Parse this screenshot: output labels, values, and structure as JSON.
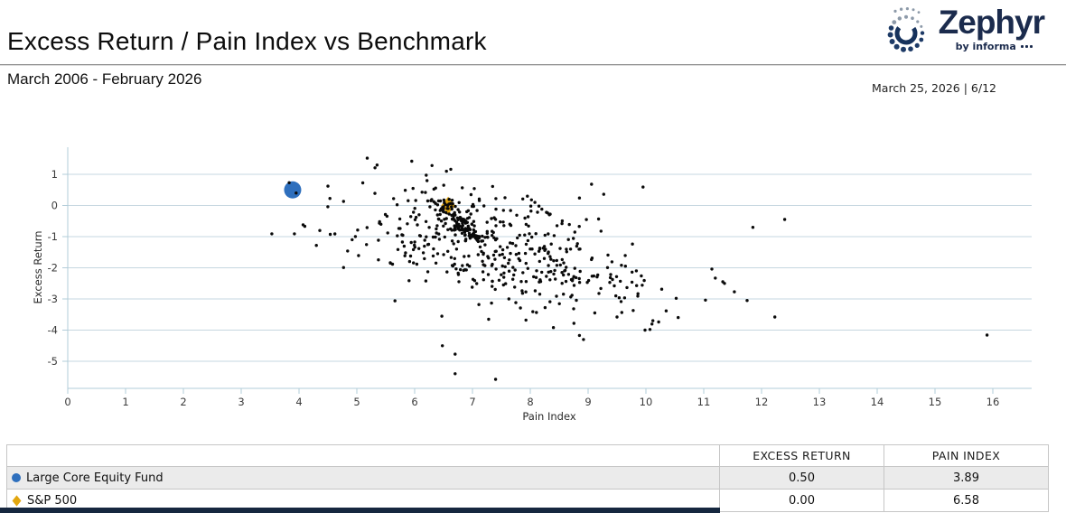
{
  "header": {
    "title": "Excess Return / Pain Index vs Benchmark",
    "subtitle": "March 2006 - February 2026",
    "date_info": "March 25, 2026 | 6/12",
    "logo": {
      "brand": "Zephyr",
      "byline": "by informa"
    }
  },
  "colors": {
    "fund-blue": "#2e6fbd",
    "benchmark-gold": "#e2a60f",
    "universe-black": "#0a0a0a",
    "grid-line": "#c6d7e0",
    "axis-line": "#b2ccd9",
    "logo-navy": "#1b2b4d",
    "footer-navy": "#16273f",
    "row-stripe": "#ebebeb"
  },
  "chart_data": {
    "type": "scatter",
    "title": "Excess Return / Pain Index vs Benchmark",
    "xlabel": "Pain Index",
    "ylabel": "Excess Return",
    "xlim": [
      0,
      16.7
    ],
    "ylim": [
      -5.95,
      1.85
    ],
    "x_ticks": [
      0,
      1,
      2,
      3,
      4,
      5,
      6,
      7,
      8,
      9,
      10,
      11,
      12,
      13,
      14,
      15,
      16
    ],
    "y_ticks": [
      1,
      0,
      -1,
      -2,
      -3,
      -4,
      -5
    ],
    "grid": "horizontal",
    "legend_position": "bottom-table",
    "series": [
      {
        "name": "Large Core Equity Fund",
        "marker": "circle",
        "color": "#2e6fbd",
        "points": [
          [
            3.89,
            0.5
          ]
        ]
      },
      {
        "name": "S&P 500",
        "marker": "diamond",
        "color": "#e2a60f",
        "points": [
          [
            6.58,
            0.0
          ]
        ]
      }
    ],
    "universe": {
      "description": "Unlabeled peer-universe scatter; ~600 funds, positions estimated from pixels",
      "color": "#0a0a0a",
      "dot_radius": 1.7,
      "cloud": {
        "count": 430,
        "seed": 42,
        "mean": [
          7.35,
          -1.35
        ],
        "sigma": [
          1.32,
          1.02
        ],
        "rho": -0.62,
        "clip_x": [
          3.9,
          12.35
        ],
        "clip_y": [
          -4.55,
          1.38
        ]
      },
      "streak": {
        "count": 115,
        "seed": 7,
        "from": [
          6.38,
          0.18
        ],
        "to": [
          7.08,
          -1.08
        ],
        "jitter": [
          0.1,
          0.12
        ]
      },
      "extra_points": [
        [
          5.66,
          -3.06
        ],
        [
          7.75,
          -3.12
        ],
        [
          7.83,
          -3.29
        ],
        [
          8.34,
          -3.09
        ],
        [
          8.4,
          -3.92
        ],
        [
          8.85,
          -4.17
        ],
        [
          8.92,
          -4.3
        ],
        [
          9.5,
          -3.58
        ],
        [
          9.78,
          -3.37
        ],
        [
          10.07,
          -3.98
        ],
        [
          10.12,
          -3.7
        ],
        [
          10.22,
          -3.74
        ],
        [
          6.48,
          -4.5
        ],
        [
          6.7,
          -4.77
        ],
        [
          6.7,
          -5.4
        ],
        [
          7.4,
          -5.58
        ],
        [
          11.14,
          -2.04
        ],
        [
          11.2,
          -2.33
        ],
        [
          11.33,
          -2.45
        ],
        [
          11.36,
          -2.5
        ],
        [
          11.53,
          -2.77
        ],
        [
          11.75,
          -3.05
        ],
        [
          12.23,
          -3.58
        ],
        [
          15.9,
          -4.16
        ],
        [
          12.4,
          -0.45
        ],
        [
          11.85,
          -0.7
        ],
        [
          9.95,
          0.59
        ],
        [
          9.06,
          0.68
        ],
        [
          9.27,
          0.36
        ],
        [
          5.18,
          1.52
        ],
        [
          5.35,
          1.3
        ],
        [
          5.95,
          1.42
        ],
        [
          6.3,
          1.28
        ],
        [
          6.55,
          1.1
        ],
        [
          4.5,
          0.62
        ],
        [
          4.77,
          0.13
        ],
        [
          4.07,
          -0.62
        ],
        [
          4.1,
          -0.67
        ],
        [
          3.92,
          -0.91
        ],
        [
          3.53,
          -0.91
        ],
        [
          4.77,
          -1.99
        ],
        [
          4.84,
          -1.46
        ],
        [
          5.03,
          -1.61
        ],
        [
          4.3,
          -1.28
        ],
        [
          7.95,
          0.3
        ],
        [
          8.02,
          0.18
        ],
        [
          8.08,
          0.1
        ],
        [
          8.15,
          -0.02
        ],
        [
          8.2,
          -0.12
        ],
        [
          8.28,
          -0.22
        ],
        [
          8.33,
          -0.3
        ]
      ],
      "overlay_points": [
        [
          3.83,
          0.73
        ],
        [
          3.95,
          0.4
        ]
      ]
    }
  },
  "table": {
    "columns": [
      "",
      "EXCESS RETURN",
      "PAIN INDEX"
    ],
    "rows": [
      {
        "name": "Large Core Equity Fund",
        "marker": "circle",
        "marker_color": "#2e6fbd",
        "excess_return": "0.50",
        "pain_index": "3.89"
      },
      {
        "name": "S&P 500",
        "marker": "diamond",
        "marker_color": "#e2a60f",
        "excess_return": "0.00",
        "pain_index": "6.58"
      }
    ]
  }
}
